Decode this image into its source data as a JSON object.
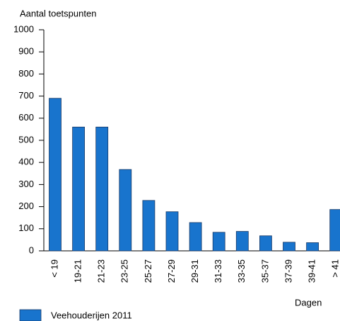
{
  "chart_data": {
    "type": "bar",
    "y_axis_label": "Aantal toetspunten",
    "x_axis_label": "Dagen",
    "categories": [
      "< 19",
      "19-21",
      "21-23",
      "23-25",
      "25-27",
      "27-29",
      "29-31",
      "31-33",
      "33-35",
      "35-37",
      "37-39",
      "39-41",
      "> 41"
    ],
    "series": [
      {
        "name": "Veehouderijen 2011",
        "color": "#1874cd",
        "values": [
          690,
          560,
          560,
          368,
          228,
          177,
          128,
          84,
          88,
          68,
          39,
          37,
          187
        ]
      }
    ],
    "ylim": [
      0,
      1000
    ],
    "yticks": [
      0,
      100,
      200,
      300,
      400,
      500,
      600,
      700,
      800,
      900,
      1000
    ]
  }
}
